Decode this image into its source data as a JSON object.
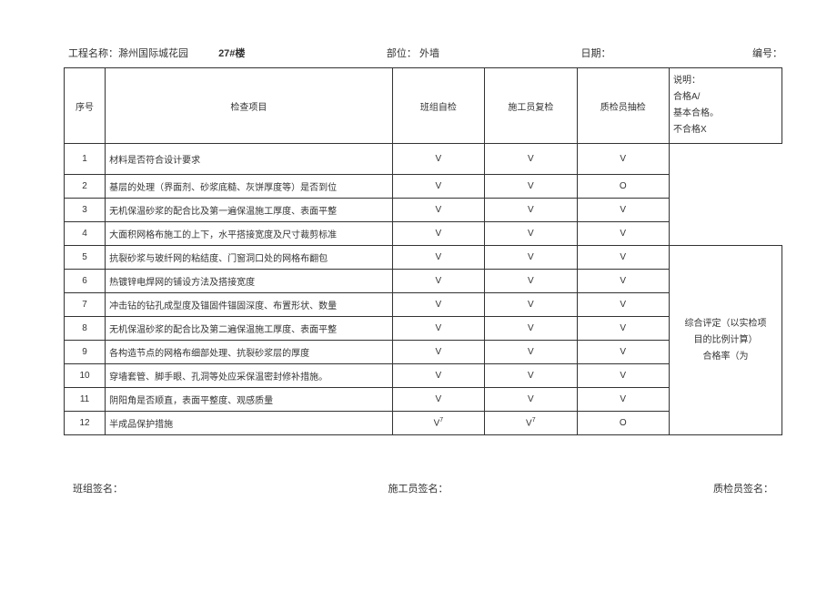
{
  "header": {
    "project_label": "工程名称：",
    "project_name": "滁州国际城花园",
    "building_no": "27#楼",
    "location_label": "部位：",
    "location_value": "外墙",
    "date_label": "日期：",
    "number_label": "编号："
  },
  "columns": {
    "seq": "序号",
    "item": "检查项目",
    "team_check": "班组自检",
    "worker_check": "施工员复检",
    "qc_check": "质检员抽检"
  },
  "legend": {
    "title": "说明：",
    "line1": "合格A/",
    "line2": "基本合格。",
    "line3": "不合格X"
  },
  "summary": {
    "line1": "综合评定（以实检项",
    "line2": "目的比例计算）",
    "line3": "合格率（为"
  },
  "rows": [
    {
      "seq": "1",
      "item": "材料是否符合设计要求",
      "c1": "V",
      "c2": "V",
      "c3": "V"
    },
    {
      "seq": "2",
      "item": "基层的处理（界面剂、砂浆底糙、灰饼厚度等）是否到位",
      "c1": "V",
      "c2": "V",
      "c3": "O"
    },
    {
      "seq": "3",
      "item": "无机保温砂浆的配合比及第一遍保温施工厚度、表面平整",
      "c1": "V",
      "c2": "V",
      "c3": "V"
    },
    {
      "seq": "4",
      "item": "大面积网格布施工的上下，水平搭接宽度及尺寸裁剪标准",
      "c1": "V",
      "c2": "V",
      "c3": "V"
    },
    {
      "seq": "5",
      "item": "抗裂砂浆与玻纤网的粘结度、门窗洞口处的网格布翻包",
      "c1": "V",
      "c2": "V",
      "c3": "V"
    },
    {
      "seq": "6",
      "item": "热镀锌电焊网的铺设方法及搭接宽度",
      "c1": "V",
      "c2": "V",
      "c3": "V"
    },
    {
      "seq": "7",
      "item": "冲击钻的钻孔成型度及锚固件锚固深度、布置形状、数量",
      "c1": "V",
      "c2": "V",
      "c3": "V"
    },
    {
      "seq": "8",
      "item": "无机保温砂浆的配合比及第二遍保温施工厚度、表面平整",
      "c1": "V",
      "c2": "V",
      "c3": "V"
    },
    {
      "seq": "9",
      "item": "各构造节点的网格布细部处理、抗裂砂浆层的厚度",
      "c1": "V",
      "c2": "V",
      "c3": "V"
    },
    {
      "seq": "10",
      "item": "穿墙套管、脚手眼、孔洞等处应采保温密封修补措施。",
      "c1": "V",
      "c2": "V",
      "c3": "V"
    },
    {
      "seq": "11",
      "item": "阴阳角是否顺直，表面平整度、观感质量",
      "c1": "V",
      "c2": "V",
      "c3": "V"
    },
    {
      "seq": "12",
      "item": "半成品保护措施",
      "c1": "V7",
      "c2": "V7",
      "c3": "O"
    }
  ],
  "signatures": {
    "team": "班组签名：",
    "worker": "施工员签名：",
    "qc": "质检员签名："
  }
}
